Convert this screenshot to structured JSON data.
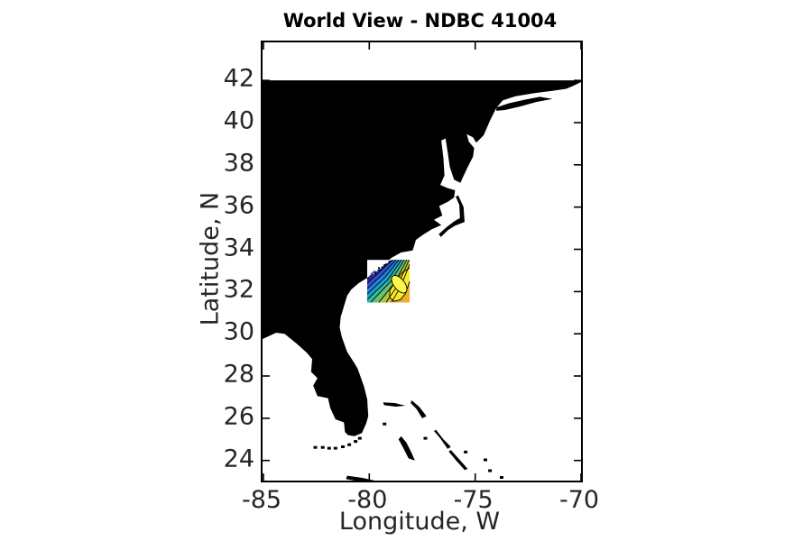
{
  "title": "World View - NDBC 41004",
  "axes": {
    "xlabel": "Longitude, W",
    "ylabel": "Latitude, N"
  },
  "chart_data": {
    "type": "map-contour",
    "title": "World View - NDBC 41004",
    "xlabel": "Longitude, W",
    "ylabel": "Latitude, N",
    "station_id": "41004",
    "xlim": [
      -85.05,
      -69.96
    ],
    "ylim": [
      23.05,
      43.8
    ],
    "x_ticks": [
      {
        "value": -85,
        "label": "-85"
      },
      {
        "value": -80,
        "label": "-80"
      },
      {
        "value": -75,
        "label": "-75"
      },
      {
        "value": -70,
        "label": "-70"
      }
    ],
    "y_ticks": [
      {
        "value": 24,
        "label": "24"
      },
      {
        "value": 26,
        "label": "26"
      },
      {
        "value": 28,
        "label": "28"
      },
      {
        "value": 30,
        "label": "30"
      },
      {
        "value": 32,
        "label": "32"
      },
      {
        "value": 34,
        "label": "34"
      },
      {
        "value": 36,
        "label": "36"
      },
      {
        "value": 38,
        "label": "38"
      },
      {
        "value": 40,
        "label": "40"
      },
      {
        "value": 42,
        "label": "42"
      }
    ],
    "grid": false,
    "land_color": "#000000",
    "water_color": "#ffffff",
    "coastline_mainland": [
      [
        -85.05,
        42.0
      ],
      [
        -69.96,
        42.0
      ],
      [
        -69.96,
        41.92
      ],
      [
        -70.35,
        41.75
      ],
      [
        -70.7,
        41.6
      ],
      [
        -71.4,
        41.5
      ],
      [
        -72.2,
        41.4
      ],
      [
        -73.1,
        41.25
      ],
      [
        -73.7,
        41.05
      ],
      [
        -74.0,
        40.7
      ],
      [
        -74.3,
        40.1
      ],
      [
        -74.6,
        39.4
      ],
      [
        -74.95,
        39.05
      ],
      [
        -75.1,
        39.3
      ],
      [
        -75.4,
        39.45
      ],
      [
        -75.3,
        39.1
      ],
      [
        -75.05,
        38.8
      ],
      [
        -75.1,
        38.4
      ],
      [
        -75.4,
        37.8
      ],
      [
        -75.7,
        37.15
      ],
      [
        -76.0,
        37.3
      ],
      [
        -76.2,
        37.9
      ],
      [
        -76.3,
        38.6
      ],
      [
        -76.4,
        39.25
      ],
      [
        -76.6,
        39.15
      ],
      [
        -76.5,
        38.3
      ],
      [
        -76.45,
        37.5
      ],
      [
        -76.65,
        37.05
      ],
      [
        -76.3,
        36.9
      ],
      [
        -75.95,
        36.8
      ],
      [
        -76.0,
        36.45
      ],
      [
        -76.3,
        36.25
      ],
      [
        -76.7,
        36.05
      ],
      [
        -76.55,
        35.6
      ],
      [
        -76.95,
        35.4
      ],
      [
        -76.6,
        35.15
      ],
      [
        -77.05,
        34.95
      ],
      [
        -77.45,
        34.7
      ],
      [
        -77.8,
        34.45
      ],
      [
        -77.95,
        33.95
      ],
      [
        -78.5,
        33.85
      ],
      [
        -78.95,
        33.6
      ],
      [
        -79.3,
        33.3
      ],
      [
        -79.7,
        33.0
      ],
      [
        -80.1,
        32.65
      ],
      [
        -80.5,
        32.4
      ],
      [
        -80.85,
        32.1
      ],
      [
        -81.05,
        31.8
      ],
      [
        -81.2,
        31.3
      ],
      [
        -81.35,
        30.8
      ],
      [
        -81.4,
        30.3
      ],
      [
        -81.3,
        29.85
      ],
      [
        -81.05,
        29.15
      ],
      [
        -80.7,
        28.6
      ],
      [
        -80.55,
        28.35
      ],
      [
        -80.25,
        27.5
      ],
      [
        -80.1,
        26.9
      ],
      [
        -80.05,
        26.1
      ],
      [
        -80.15,
        25.75
      ],
      [
        -80.35,
        25.3
      ],
      [
        -80.7,
        25.15
      ],
      [
        -81.0,
        25.2
      ],
      [
        -81.15,
        25.35
      ],
      [
        -81.2,
        25.8
      ],
      [
        -81.6,
        25.95
      ],
      [
        -81.85,
        26.5
      ],
      [
        -81.95,
        26.95
      ],
      [
        -82.45,
        27.05
      ],
      [
        -82.65,
        27.55
      ],
      [
        -82.45,
        27.9
      ],
      [
        -82.75,
        28.2
      ],
      [
        -82.7,
        28.8
      ],
      [
        -82.95,
        29.1
      ],
      [
        -83.45,
        29.55
      ],
      [
        -84.0,
        30.0
      ],
      [
        -84.4,
        30.05
      ],
      [
        -85.05,
        29.75
      ]
    ],
    "islands": [
      {
        "name": "long-island",
        "pts": [
          [
            -74.0,
            40.72
          ],
          [
            -73.4,
            40.92
          ],
          [
            -72.7,
            41.08
          ],
          [
            -71.95,
            41.22
          ],
          [
            -71.35,
            41.12
          ],
          [
            -72.1,
            40.98
          ],
          [
            -72.9,
            40.76
          ],
          [
            -73.6,
            40.6
          ],
          [
            -74.0,
            40.56
          ]
        ]
      },
      {
        "name": "outer-banks",
        "pts": [
          [
            -75.8,
            36.55
          ],
          [
            -75.55,
            36.0
          ],
          [
            -75.5,
            35.3
          ],
          [
            -75.95,
            35.12
          ],
          [
            -76.3,
            34.9
          ],
          [
            -76.62,
            34.58
          ],
          [
            -76.72,
            34.72
          ],
          [
            -76.35,
            35.05
          ],
          [
            -76.0,
            35.32
          ],
          [
            -75.72,
            35.48
          ],
          [
            -75.75,
            36.1
          ],
          [
            -75.92,
            36.5
          ]
        ]
      },
      {
        "name": "grand-bahama",
        "pts": [
          [
            -79.35,
            26.75
          ],
          [
            -78.8,
            26.72
          ],
          [
            -78.3,
            26.6
          ],
          [
            -78.75,
            26.55
          ],
          [
            -79.3,
            26.62
          ]
        ]
      },
      {
        "name": "abaco",
        "pts": [
          [
            -78.0,
            26.85
          ],
          [
            -77.65,
            26.55
          ],
          [
            -77.3,
            26.1
          ],
          [
            -77.5,
            26.0
          ],
          [
            -77.78,
            26.45
          ],
          [
            -78.05,
            26.72
          ]
        ]
      },
      {
        "name": "andros",
        "pts": [
          [
            -78.5,
            25.15
          ],
          [
            -78.25,
            24.85
          ],
          [
            -78.0,
            24.35
          ],
          [
            -77.85,
            24.0
          ],
          [
            -78.15,
            24.1
          ],
          [
            -78.4,
            24.6
          ],
          [
            -78.62,
            25.0
          ]
        ]
      },
      {
        "name": "eleuthera",
        "pts": [
          [
            -76.85,
            25.45
          ],
          [
            -76.5,
            25.0
          ],
          [
            -76.15,
            24.65
          ],
          [
            -76.3,
            24.55
          ],
          [
            -76.65,
            25.05
          ],
          [
            -76.95,
            25.4
          ]
        ]
      },
      {
        "name": "exuma-chain",
        "pts": [
          [
            -76.15,
            24.5
          ],
          [
            -75.75,
            24.05
          ],
          [
            -75.35,
            23.6
          ],
          [
            -75.5,
            23.55
          ],
          [
            -75.9,
            24.0
          ],
          [
            -76.25,
            24.42
          ]
        ]
      },
      {
        "name": "cuba-north-coast",
        "pts": [
          [
            -81.05,
            23.28
          ],
          [
            -80.35,
            23.18
          ],
          [
            -79.75,
            23.05
          ],
          [
            -80.4,
            23.0
          ],
          [
            -81.1,
            23.12
          ]
        ]
      }
    ],
    "island_dots": [
      [
        -79.28,
        25.73
      ],
      [
        -77.35,
        25.05
      ],
      [
        -75.45,
        24.4
      ],
      [
        -74.52,
        24.03
      ],
      [
        -74.3,
        23.52
      ],
      [
        -73.75,
        23.2
      ],
      [
        -80.45,
        25.05
      ],
      [
        -80.65,
        24.9
      ],
      [
        -80.95,
        24.75
      ],
      [
        -81.25,
        24.65
      ],
      [
        -81.6,
        24.58
      ],
      [
        -81.9,
        24.58
      ],
      [
        -82.2,
        24.62
      ],
      [
        -82.55,
        24.62
      ]
    ],
    "contour_patch": {
      "lon_range": [
        -80.1,
        -78.1
      ],
      "lat_range": [
        31.5,
        33.5
      ],
      "colormap": "parula-like, low NW to high SE, closed maximum contour near SE",
      "size_units": 47,
      "line_color": "#000000",
      "land_mask_triangle": [
        [
          0,
          0
        ],
        [
          27,
          0
        ],
        [
          0,
          21
        ]
      ],
      "bands": [
        {
          "color": "#342b90",
          "curve": null
        },
        {
          "color": "#2c51d8",
          "curve": [
            [
              28,
              0
            ],
            [
              14,
              13
            ],
            [
              0,
              26
            ]
          ]
        },
        {
          "color": "#2b7fdd",
          "curve": [
            [
              32,
              0
            ],
            [
              17,
              16
            ],
            [
              0,
              32
            ]
          ]
        },
        {
          "color": "#15a2d0",
          "curve": [
            [
              35,
              0
            ],
            [
              20,
              19
            ],
            [
              0,
              38
            ]
          ]
        },
        {
          "color": "#2fbba3",
          "curve": [
            [
              38,
              0
            ],
            [
              23,
              22
            ],
            [
              0,
              44
            ]
          ]
        },
        {
          "color": "#6ec16f",
          "curve": [
            [
              41,
              0
            ],
            [
              26,
              24
            ],
            [
              4,
              47
            ]
          ]
        },
        {
          "color": "#abc53e",
          "curve": [
            [
              44,
              0
            ],
            [
              30,
              26
            ],
            [
              13,
              47
            ]
          ]
        },
        {
          "color": "#dcc337",
          "curve": [
            [
              46.5,
              0
            ],
            [
              34,
              28
            ],
            [
              21,
              47
            ]
          ]
        },
        {
          "color": "#f0ad2a",
          "curve": [
            [
              47,
              5
            ],
            [
              37,
              30
            ],
            [
              27,
              47
            ]
          ]
        }
      ],
      "max_region": {
        "color": "#f6ec28",
        "pts": [
          [
            47,
            9
          ],
          [
            39,
            14
          ],
          [
            31,
            24
          ],
          [
            25,
            34
          ],
          [
            25,
            42
          ],
          [
            30,
            46
          ],
          [
            37,
            44
          ],
          [
            42,
            38
          ],
          [
            45,
            30
          ],
          [
            47,
            24
          ]
        ]
      },
      "max_loop": {
        "color": "#fdf847",
        "cx": 35.5,
        "cy": 27,
        "rx": 6,
        "ry": 11.5,
        "angle": -38
      },
      "coast_dash_line": [
        [
          0,
          21
        ],
        [
          27,
          0
        ]
      ],
      "coast_specks": [
        [
          12,
          8
        ],
        [
          18,
          5
        ],
        [
          8,
          14
        ]
      ],
      "coast_slivers": [
        {
          "color": "#2c51d8",
          "pts": [
            [
              4,
              16
            ],
            [
              9,
              12
            ]
          ]
        },
        {
          "color": "#342b90",
          "pts": [
            [
              2,
              19
            ],
            [
              6,
              16
            ]
          ]
        }
      ]
    }
  },
  "colors": {
    "title": "#000000",
    "axis_text": "#262626",
    "axis_line": "#000000"
  }
}
